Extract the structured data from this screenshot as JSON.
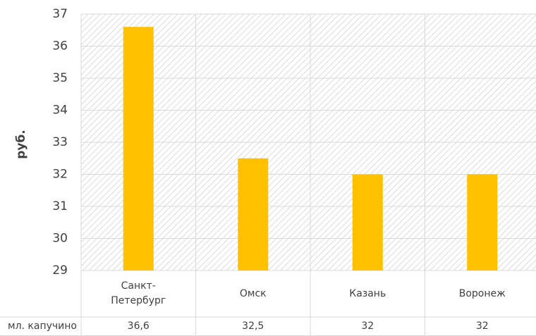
{
  "chart_data": {
    "type": "bar",
    "y_label": "руб.",
    "categories": [
      "Санкт-Петербург",
      "Омск",
      "Казань",
      "Воронеж"
    ],
    "series": [
      {
        "name": "мл. капучино",
        "color": "#ffc000",
        "values": [
          36.6,
          32.5,
          32,
          32
        ],
        "value_labels": [
          "36,6",
          "32,5",
          "32",
          "32"
        ]
      }
    ],
    "ylim": [
      29,
      37
    ],
    "yticks": [
      29,
      30,
      31,
      32,
      33,
      34,
      35,
      36,
      37
    ],
    "grid": true,
    "data_table": true
  }
}
